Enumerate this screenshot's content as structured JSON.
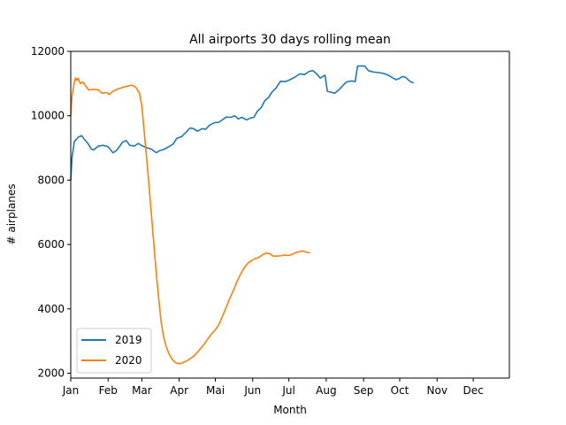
{
  "chart_data": {
    "type": "line",
    "title": "All airports 30 days rolling mean",
    "xlabel": "Month",
    "ylabel": "# airplanes",
    "x_unit": "day of year",
    "xlim": [
      1,
      365
    ],
    "ylim": [
      1850,
      12000
    ],
    "month_ticks": [
      {
        "label": "Jan",
        "day": 1
      },
      {
        "label": "Feb",
        "day": 32
      },
      {
        "label": "Mar",
        "day": 60
      },
      {
        "label": "Apr",
        "day": 91
      },
      {
        "label": "Mai",
        "day": 121
      },
      {
        "label": "Jun",
        "day": 152
      },
      {
        "label": "Jul",
        "day": 182
      },
      {
        "label": "Aug",
        "day": 213
      },
      {
        "label": "Sep",
        "day": 244
      },
      {
        "label": "Oct",
        "day": 274
      },
      {
        "label": "Nov",
        "day": 305
      },
      {
        "label": "Dec",
        "day": 335
      }
    ],
    "y_ticks": [
      2000,
      4000,
      6000,
      8000,
      10000,
      12000
    ],
    "y_tick_labels": [
      "2000",
      "4000",
      "6000",
      "8000",
      "10000",
      "12000"
    ],
    "grid": false,
    "legend_position": "lower-left",
    "series": [
      {
        "name": "2019",
        "color": "#1f77b4",
        "points": [
          [
            1,
            8000
          ],
          [
            2,
            8700
          ],
          [
            4,
            9200
          ],
          [
            7,
            9330
          ],
          [
            10,
            9380
          ],
          [
            12,
            9280
          ],
          [
            15,
            9150
          ],
          [
            18,
            8970
          ],
          [
            20,
            8940
          ],
          [
            24,
            9060
          ],
          [
            28,
            9080
          ],
          [
            32,
            9040
          ],
          [
            36,
            8850
          ],
          [
            39,
            8920
          ],
          [
            44,
            9180
          ],
          [
            47,
            9230
          ],
          [
            50,
            9080
          ],
          [
            54,
            9060
          ],
          [
            57,
            9140
          ],
          [
            60,
            9070
          ],
          [
            64,
            9010
          ],
          [
            68,
            8960
          ],
          [
            72,
            8850
          ],
          [
            75,
            8920
          ],
          [
            78,
            8950
          ],
          [
            82,
            9030
          ],
          [
            86,
            9120
          ],
          [
            89,
            9300
          ],
          [
            93,
            9350
          ],
          [
            97,
            9500
          ],
          [
            100,
            9620
          ],
          [
            103,
            9600
          ],
          [
            106,
            9520
          ],
          [
            110,
            9600
          ],
          [
            113,
            9580
          ],
          [
            116,
            9700
          ],
          [
            120,
            9780
          ],
          [
            124,
            9800
          ],
          [
            127,
            9880
          ],
          [
            130,
            9960
          ],
          [
            134,
            9950
          ],
          [
            137,
            10000
          ],
          [
            140,
            9900
          ],
          [
            143,
            9950
          ],
          [
            147,
            9870
          ],
          [
            150,
            9930
          ],
          [
            153,
            9950
          ],
          [
            156,
            10150
          ],
          [
            159,
            10250
          ],
          [
            162,
            10470
          ],
          [
            165,
            10560
          ],
          [
            168,
            10740
          ],
          [
            171,
            10840
          ],
          [
            175,
            11070
          ],
          [
            179,
            11060
          ],
          [
            183,
            11120
          ],
          [
            187,
            11200
          ],
          [
            191,
            11300
          ],
          [
            195,
            11280
          ],
          [
            199,
            11380
          ],
          [
            202,
            11400
          ],
          [
            205,
            11300
          ],
          [
            208,
            11170
          ],
          [
            212,
            11260
          ],
          [
            214,
            10760
          ],
          [
            218,
            10720
          ],
          [
            220,
            10700
          ],
          [
            224,
            10820
          ],
          [
            227,
            10950
          ],
          [
            230,
            11050
          ],
          [
            234,
            11080
          ],
          [
            237,
            11060
          ],
          [
            239,
            11540
          ],
          [
            242,
            11550
          ],
          [
            245,
            11540
          ],
          [
            248,
            11400
          ],
          [
            252,
            11360
          ],
          [
            257,
            11340
          ],
          [
            261,
            11310
          ],
          [
            265,
            11250
          ],
          [
            268,
            11180
          ],
          [
            271,
            11120
          ],
          [
            274,
            11160
          ],
          [
            276,
            11220
          ],
          [
            279,
            11190
          ],
          [
            282,
            11080
          ],
          [
            285,
            11020
          ]
        ]
      },
      {
        "name": "2020",
        "color": "#ff7f0e",
        "points": [
          [
            1,
            10000
          ],
          [
            2,
            10600
          ],
          [
            4,
            11050
          ],
          [
            5,
            11180
          ],
          [
            6,
            11100
          ],
          [
            7,
            11160
          ],
          [
            9,
            11000
          ],
          [
            11,
            11050
          ],
          [
            13,
            10940
          ],
          [
            16,
            10800
          ],
          [
            20,
            10820
          ],
          [
            24,
            10800
          ],
          [
            27,
            10700
          ],
          [
            31,
            10720
          ],
          [
            33,
            10660
          ],
          [
            36,
            10760
          ],
          [
            40,
            10830
          ],
          [
            44,
            10880
          ],
          [
            48,
            10920
          ],
          [
            52,
            10950
          ],
          [
            55,
            10880
          ],
          [
            58,
            10700
          ],
          [
            60,
            10300
          ],
          [
            62,
            9500
          ],
          [
            64,
            8700
          ],
          [
            66,
            7800
          ],
          [
            68,
            6900
          ],
          [
            70,
            6000
          ],
          [
            72,
            5100
          ],
          [
            74,
            4300
          ],
          [
            76,
            3600
          ],
          [
            78,
            3150
          ],
          [
            80,
            2850
          ],
          [
            82,
            2650
          ],
          [
            84,
            2500
          ],
          [
            86,
            2400
          ],
          [
            88,
            2330
          ],
          [
            90,
            2300
          ],
          [
            92,
            2300
          ],
          [
            94,
            2330
          ],
          [
            97,
            2380
          ],
          [
            100,
            2450
          ],
          [
            103,
            2530
          ],
          [
            106,
            2650
          ],
          [
            109,
            2780
          ],
          [
            112,
            2920
          ],
          [
            115,
            3080
          ],
          [
            118,
            3230
          ],
          [
            121,
            3350
          ],
          [
            124,
            3520
          ],
          [
            127,
            3780
          ],
          [
            130,
            4050
          ],
          [
            133,
            4330
          ],
          [
            136,
            4580
          ],
          [
            139,
            4850
          ],
          [
            142,
            5080
          ],
          [
            145,
            5280
          ],
          [
            148,
            5420
          ],
          [
            151,
            5500
          ],
          [
            154,
            5560
          ],
          [
            157,
            5600
          ],
          [
            160,
            5680
          ],
          [
            163,
            5730
          ],
          [
            166,
            5720
          ],
          [
            169,
            5640
          ],
          [
            172,
            5640
          ],
          [
            175,
            5650
          ],
          [
            178,
            5670
          ],
          [
            181,
            5660
          ],
          [
            184,
            5680
          ],
          [
            187,
            5740
          ],
          [
            190,
            5770
          ],
          [
            193,
            5800
          ],
          [
            196,
            5770
          ],
          [
            199,
            5740
          ]
        ]
      }
    ]
  }
}
